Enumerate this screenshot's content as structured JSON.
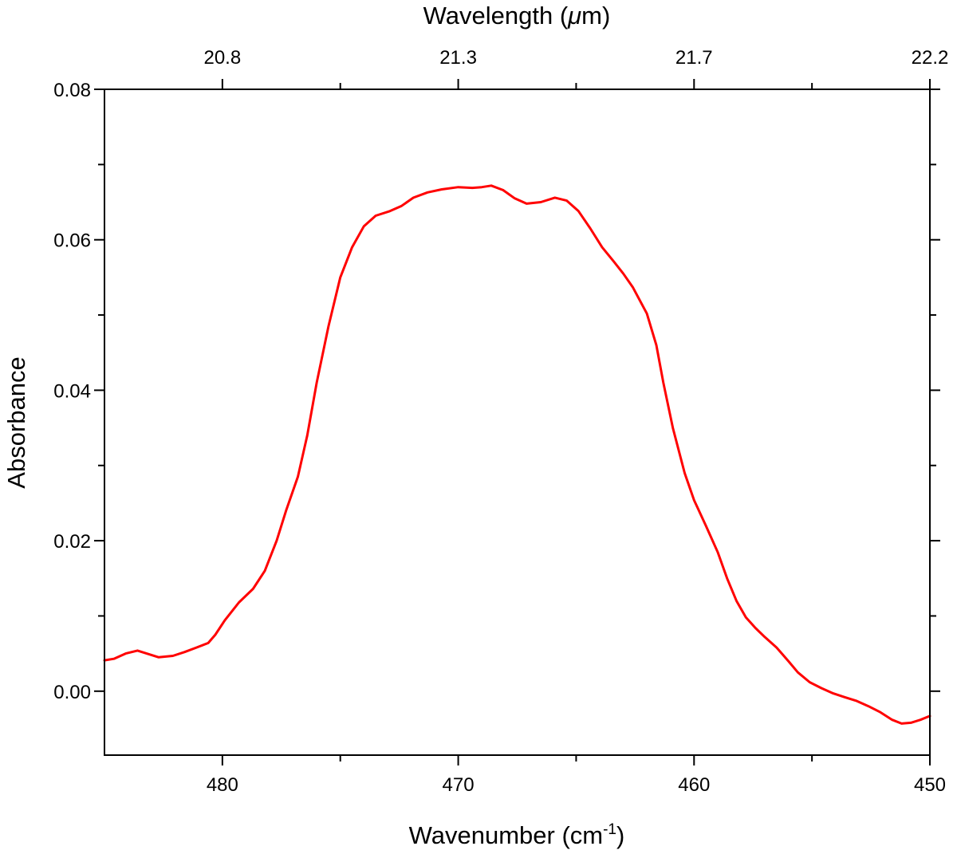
{
  "chart_data": {
    "type": "line",
    "xlabel": "Wavenumber (cm",
    "xlabel_sup": "-1",
    "xlabel_suffix": ")",
    "ylabel": "Absorbance",
    "x2label_prefix": "Wavelength (",
    "x2label_symbol": "μ",
    "x2label_suffix": "m)",
    "xlim": [
      485,
      450
    ],
    "ylim": [
      -0.0085,
      0.08
    ],
    "x_major_ticks": [
      480,
      470,
      460,
      450
    ],
    "x_minor_ticks": [
      475,
      465,
      455
    ],
    "x_tick_labels": [
      "480",
      "470",
      "460",
      "450"
    ],
    "y_major_ticks": [
      0.0,
      0.02,
      0.04,
      0.06,
      0.08
    ],
    "y_minor_ticks": [
      0.01,
      0.03,
      0.05,
      0.07
    ],
    "y_tick_labels": [
      "0.00",
      "0.02",
      "0.04",
      "0.06",
      "0.08"
    ],
    "x2_major_ticks_wavenumber": [
      480,
      470,
      460,
      450
    ],
    "x2_minor_ticks_wavenumber": [
      475,
      465,
      455
    ],
    "x2_tick_labels": [
      "20.8",
      "21.3",
      "21.7",
      "22.2"
    ],
    "line_color": "#ff0000",
    "series": [
      {
        "name": "Absorbance",
        "x": [
          485.0,
          484.6,
          484.1,
          483.6,
          482.7,
          482.1,
          481.6,
          481.1,
          480.6,
          480.3,
          479.9,
          479.3,
          478.7,
          478.2,
          477.7,
          477.3,
          476.8,
          476.4,
          476.0,
          475.5,
          475.0,
          474.5,
          474.0,
          473.5,
          472.9,
          472.4,
          471.9,
          471.3,
          470.7,
          470.0,
          469.4,
          469.0,
          468.6,
          468.1,
          467.6,
          467.1,
          466.5,
          465.9,
          465.4,
          464.9,
          464.4,
          463.9,
          463.4,
          463.0,
          462.6,
          462.0,
          461.6,
          461.3,
          460.9,
          460.4,
          460.0,
          459.5,
          459.0,
          458.6,
          458.2,
          457.8,
          457.4,
          457.0,
          456.5,
          456.0,
          455.6,
          455.1,
          454.6,
          454.1,
          453.6,
          453.1,
          452.6,
          452.1,
          451.6,
          451.2,
          450.8,
          450.4,
          450.0
        ],
        "y": [
          0.0041,
          0.0043,
          0.005,
          0.0054,
          0.0045,
          0.0047,
          0.0052,
          0.0058,
          0.0064,
          0.0075,
          0.0094,
          0.0118,
          0.0136,
          0.016,
          0.02,
          0.024,
          0.0285,
          0.034,
          0.041,
          0.0485,
          0.055,
          0.059,
          0.0618,
          0.0632,
          0.0638,
          0.0645,
          0.0656,
          0.0663,
          0.0667,
          0.067,
          0.0669,
          0.067,
          0.0672,
          0.0666,
          0.0655,
          0.0648,
          0.065,
          0.0656,
          0.0652,
          0.0638,
          0.0615,
          0.059,
          0.0571,
          0.0555,
          0.0537,
          0.0502,
          0.046,
          0.041,
          0.035,
          0.029,
          0.0254,
          0.022,
          0.0185,
          0.015,
          0.012,
          0.0098,
          0.0084,
          0.0072,
          0.0058,
          0.004,
          0.0025,
          0.0012,
          0.0004,
          -0.0003,
          -0.0008,
          -0.0013,
          -0.002,
          -0.0028,
          -0.0038,
          -0.0043,
          -0.0042,
          -0.0038,
          -0.0033
        ]
      }
    ]
  }
}
